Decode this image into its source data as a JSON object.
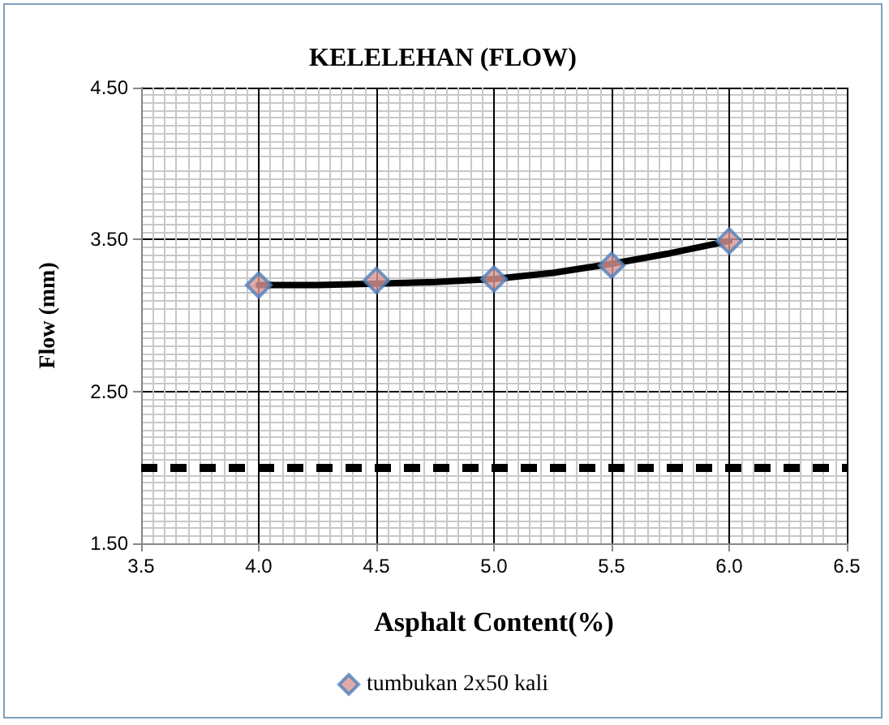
{
  "chart_data": {
    "type": "scatter",
    "title": "KELELEHAN (FLOW)",
    "xlabel": "Asphalt Content(%)",
    "ylabel": "Flow (mm)",
    "x": [
      4.0,
      4.5,
      5.0,
      5.5,
      6.0
    ],
    "series": [
      {
        "name": "tumbukan 2x50 kali",
        "color": "#d99694",
        "values": [
          3.2,
          3.23,
          3.24,
          3.33,
          3.49
        ],
        "marker": "diamond"
      },
      {
        "type": "line",
        "color": "#000000",
        "x": [
          4.0,
          4.25,
          4.5,
          4.75,
          5.0,
          5.25,
          5.5,
          5.75,
          6.0
        ],
        "values": [
          3.2,
          3.2,
          3.21,
          3.22,
          3.24,
          3.28,
          3.34,
          3.41,
          3.49
        ],
        "marker": "none",
        "line_style": "solid"
      }
    ],
    "ref_lines": [
      {
        "axis": "y",
        "value": 2.0,
        "color": "#000000",
        "line_style": "dashed"
      }
    ],
    "xlim": [
      3.5,
      6.5
    ],
    "xticks": [
      {
        "value": 3.5,
        "label": "3.5"
      },
      {
        "value": 4,
        "label": "4.0"
      },
      {
        "value": 4.5,
        "label": "4.5"
      },
      {
        "value": 5,
        "label": "5.0"
      },
      {
        "value": 5.5,
        "label": "5.5"
      },
      {
        "value": 6,
        "label": "6.0"
      },
      {
        "value": 6.5,
        "label": "6.5"
      }
    ],
    "ylim": [
      1.5,
      4.5
    ],
    "yticks": [
      {
        "value": 1.5,
        "label": "1.50"
      },
      {
        "value": 2.5,
        "label": "2.50"
      },
      {
        "value": 3.5,
        "label": "3.50"
      },
      {
        "value": 4.5,
        "label": "4.50"
      }
    ],
    "grid": true,
    "legend": "bottom"
  }
}
